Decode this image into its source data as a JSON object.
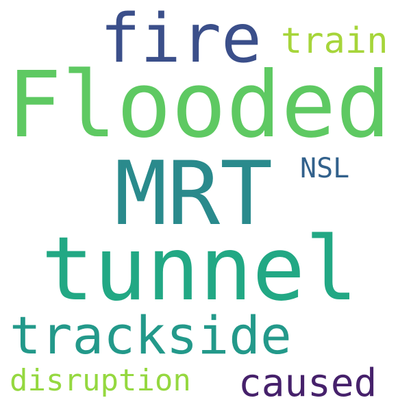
{
  "word_cloud": {
    "words": {
      "fire": {
        "text": "fire",
        "color": "#3b4f8a"
      },
      "train": {
        "text": "train",
        "color": "#a6d53a"
      },
      "flooded": {
        "text": "Flooded",
        "color": "#5ec962"
      },
      "mrt": {
        "text": "MRT",
        "color": "#2a8a8c"
      },
      "nsl": {
        "text": "NSL",
        "color": "#32618c"
      },
      "tunnel": {
        "text": "tunnel",
        "color": "#22a884"
      },
      "trackside": {
        "text": "trackside",
        "color": "#23998a"
      },
      "disruption": {
        "text": "disruption",
        "color": "#95d840"
      },
      "caused": {
        "text": "caused",
        "color": "#46216b"
      }
    }
  }
}
